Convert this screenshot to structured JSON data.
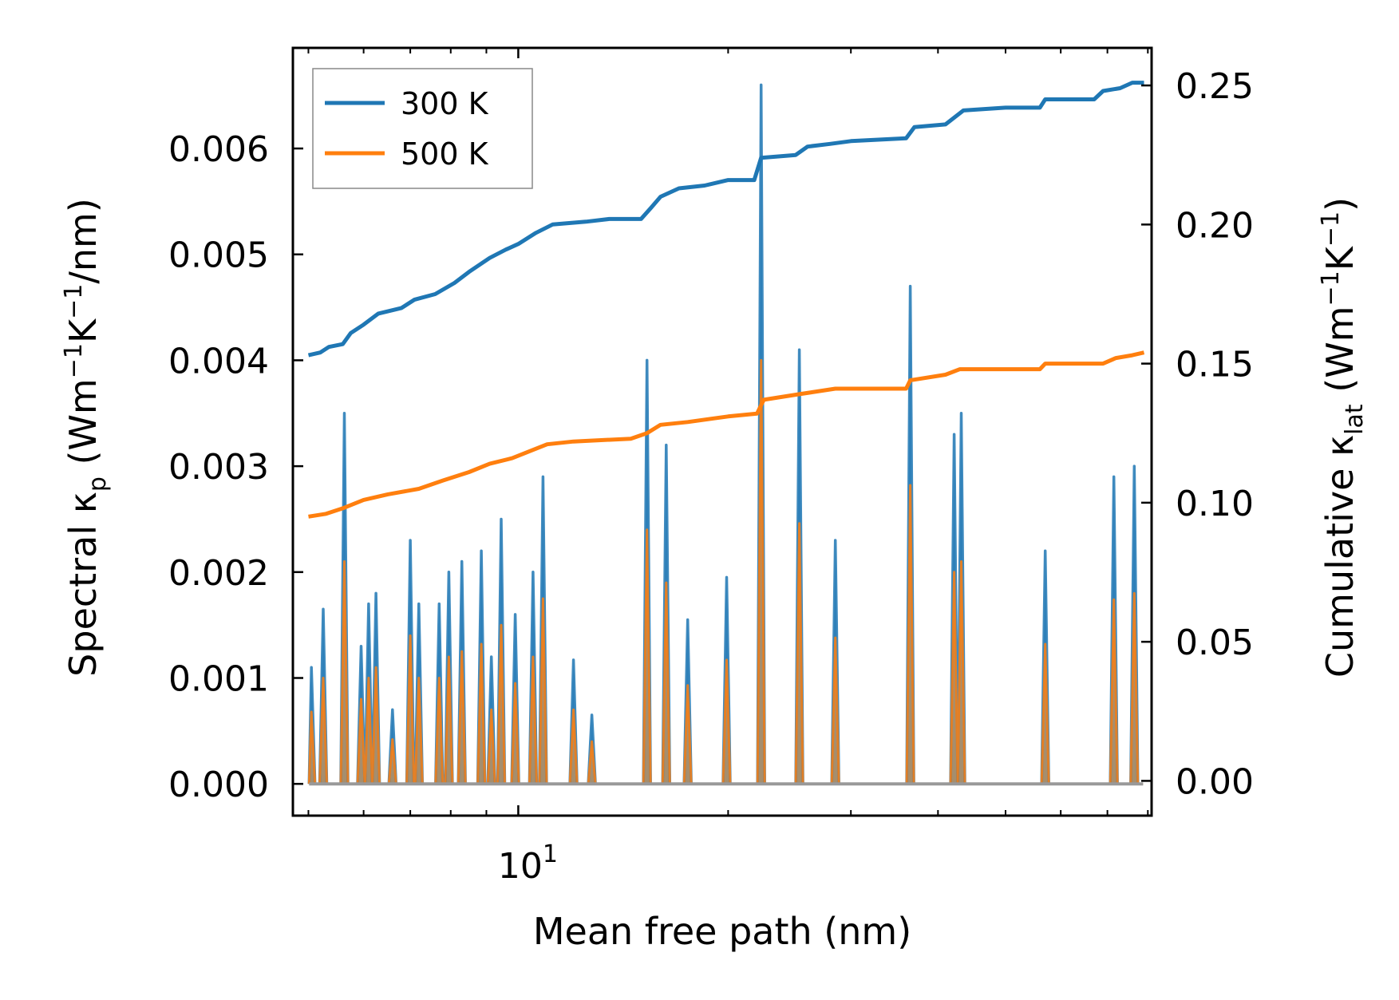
{
  "chart_data": {
    "type": "line",
    "title": "",
    "xlabel": "Mean free path (nm)",
    "xscale": "log",
    "xlim": [
      4.75,
      81
    ],
    "x_ticks": [
      {
        "value": 10,
        "base": "10",
        "exp": "1"
      }
    ],
    "y_left": {
      "label_main": "Spectral κ",
      "label_sub": "p",
      "label_unit_1": " (Wm",
      "label_sup_1": "−1",
      "label_unit_2": "K",
      "label_sup_2": "−1",
      "label_unit_3": "/nm)",
      "ylim": [
        -0.0003,
        0.00695
      ],
      "ticks": [
        0.0,
        0.001,
        0.002,
        0.003,
        0.004,
        0.005,
        0.006
      ],
      "tick_labels": [
        "0.000",
        "0.001",
        "0.002",
        "0.003",
        "0.004",
        "0.005",
        "0.006"
      ]
    },
    "y_right": {
      "label_main": "Cumulative κ",
      "label_sub": "lat",
      "label_unit_1": " (Wm",
      "label_sup_1": "−1",
      "label_unit_2": "K",
      "label_sup_2": "−1",
      "label_unit_3": ")",
      "ylim": [
        -0.0125,
        0.2635
      ],
      "ticks": [
        0.0,
        0.05,
        0.1,
        0.15,
        0.2,
        0.25
      ],
      "tick_labels": [
        "0.00",
        "0.05",
        "0.10",
        "0.15",
        "0.20",
        "0.25"
      ]
    },
    "legend": {
      "position": "top-left",
      "entries": [
        "300 K",
        "500 K"
      ]
    },
    "colors": {
      "300K": "#1f77b4",
      "500K": "#ff7f0e",
      "fill_overlap": "#a88963"
    },
    "spectral_series": [
      {
        "name": "300 K",
        "peaks": [
          [
            5.05,
            0.0011
          ],
          [
            5.25,
            0.00165
          ],
          [
            5.63,
            0.0035
          ],
          [
            5.95,
            0.0013
          ],
          [
            6.1,
            0.0017
          ],
          [
            6.25,
            0.0018
          ],
          [
            6.6,
            0.0007
          ],
          [
            7.0,
            0.0023
          ],
          [
            7.2,
            0.0017
          ],
          [
            7.7,
            0.0017
          ],
          [
            7.95,
            0.002
          ],
          [
            8.3,
            0.0021
          ],
          [
            8.85,
            0.0022
          ],
          [
            9.15,
            0.0012
          ],
          [
            9.45,
            0.0025
          ],
          [
            9.9,
            0.0016
          ],
          [
            10.5,
            0.002
          ],
          [
            10.85,
            0.0029
          ],
          [
            12.0,
            0.00117
          ],
          [
            12.75,
            0.00065
          ],
          [
            15.3,
            0.004
          ],
          [
            16.3,
            0.0032
          ],
          [
            17.5,
            0.00155
          ],
          [
            19.9,
            0.00195
          ],
          [
            22.3,
            0.0066
          ],
          [
            25.3,
            0.0041
          ],
          [
            28.5,
            0.0023
          ],
          [
            36.5,
            0.0047
          ],
          [
            42.2,
            0.0033
          ],
          [
            43.2,
            0.0035
          ],
          [
            57.0,
            0.0022
          ],
          [
            71.5,
            0.0029
          ],
          [
            76.5,
            0.003
          ]
        ]
      },
      {
        "name": "500 K",
        "peaks": [
          [
            5.05,
            0.00068
          ],
          [
            5.25,
            0.001
          ],
          [
            5.63,
            0.0021
          ],
          [
            5.95,
            0.0008
          ],
          [
            6.1,
            0.001
          ],
          [
            6.25,
            0.0011
          ],
          [
            6.6,
            0.00042
          ],
          [
            7.0,
            0.0014
          ],
          [
            7.2,
            0.001
          ],
          [
            7.7,
            0.001
          ],
          [
            7.95,
            0.0012
          ],
          [
            8.3,
            0.00125
          ],
          [
            8.85,
            0.00132
          ],
          [
            9.15,
            0.0007
          ],
          [
            9.45,
            0.0015
          ],
          [
            9.9,
            0.00095
          ],
          [
            10.5,
            0.0012
          ],
          [
            10.85,
            0.00175
          ],
          [
            12.0,
            0.0007
          ],
          [
            12.75,
            0.0004
          ],
          [
            15.3,
            0.0024
          ],
          [
            16.3,
            0.0019
          ],
          [
            17.5,
            0.00093
          ],
          [
            19.9,
            0.00117
          ],
          [
            22.3,
            0.004
          ],
          [
            25.3,
            0.00246
          ],
          [
            28.5,
            0.00138
          ],
          [
            36.5,
            0.00282
          ],
          [
            42.2,
            0.002
          ],
          [
            43.2,
            0.0021
          ],
          [
            57.0,
            0.00132
          ],
          [
            71.5,
            0.00174
          ],
          [
            76.5,
            0.0018
          ]
        ]
      }
    ],
    "cumulative_series": [
      {
        "name": "300 K",
        "points": [
          [
            5.0,
            0.153
          ],
          [
            5.2,
            0.154
          ],
          [
            5.35,
            0.156
          ],
          [
            5.6,
            0.157
          ],
          [
            5.75,
            0.161
          ],
          [
            6.0,
            0.164
          ],
          [
            6.3,
            0.168
          ],
          [
            6.8,
            0.17
          ],
          [
            7.1,
            0.173
          ],
          [
            7.6,
            0.175
          ],
          [
            8.1,
            0.179
          ],
          [
            8.5,
            0.183
          ],
          [
            9.1,
            0.188
          ],
          [
            9.6,
            0.191
          ],
          [
            10.0,
            0.193
          ],
          [
            10.6,
            0.197
          ],
          [
            11.2,
            0.2
          ],
          [
            12.5,
            0.201
          ],
          [
            13.5,
            0.202
          ],
          [
            15.0,
            0.202
          ],
          [
            15.5,
            0.206
          ],
          [
            16.0,
            0.21
          ],
          [
            17.0,
            0.213
          ],
          [
            18.5,
            0.214
          ],
          [
            20.0,
            0.216
          ],
          [
            21.8,
            0.216
          ],
          [
            22.3,
            0.224
          ],
          [
            25.0,
            0.225
          ],
          [
            26.0,
            0.228
          ],
          [
            28.0,
            0.229
          ],
          [
            30.0,
            0.23
          ],
          [
            36.0,
            0.231
          ],
          [
            37.0,
            0.235
          ],
          [
            41.0,
            0.236
          ],
          [
            43.5,
            0.241
          ],
          [
            50.0,
            0.242
          ],
          [
            56.0,
            0.242
          ],
          [
            57.0,
            0.245
          ],
          [
            67.0,
            0.245
          ],
          [
            69.0,
            0.248
          ],
          [
            73.0,
            0.249
          ],
          [
            76.0,
            0.251
          ],
          [
            79.0,
            0.251
          ]
        ]
      },
      {
        "name": "500 K",
        "points": [
          [
            5.0,
            0.095
          ],
          [
            5.3,
            0.096
          ],
          [
            5.6,
            0.098
          ],
          [
            6.0,
            0.101
          ],
          [
            6.5,
            0.103
          ],
          [
            7.2,
            0.105
          ],
          [
            7.8,
            0.108
          ],
          [
            8.5,
            0.111
          ],
          [
            9.1,
            0.114
          ],
          [
            9.8,
            0.116
          ],
          [
            10.5,
            0.119
          ],
          [
            11.0,
            0.121
          ],
          [
            12.0,
            0.122
          ],
          [
            14.5,
            0.123
          ],
          [
            15.3,
            0.125
          ],
          [
            16.0,
            0.128
          ],
          [
            17.5,
            0.129
          ],
          [
            20.0,
            0.131
          ],
          [
            22.0,
            0.132
          ],
          [
            22.5,
            0.137
          ],
          [
            25.3,
            0.139
          ],
          [
            28.5,
            0.141
          ],
          [
            36.0,
            0.141
          ],
          [
            36.5,
            0.144
          ],
          [
            41.0,
            0.146
          ],
          [
            43.0,
            0.148
          ],
          [
            56.0,
            0.148
          ],
          [
            57.0,
            0.15
          ],
          [
            69.0,
            0.15
          ],
          [
            72.0,
            0.152
          ],
          [
            76.0,
            0.153
          ],
          [
            79.0,
            0.154
          ]
        ]
      }
    ]
  }
}
